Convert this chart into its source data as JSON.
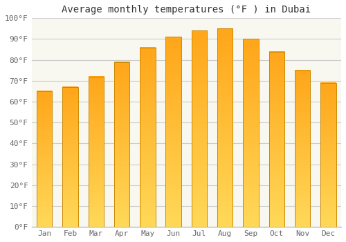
{
  "title": "Average monthly temperatures (°F ) in Dubai",
  "months": [
    "Jan",
    "Feb",
    "Mar",
    "Apr",
    "May",
    "Jun",
    "Jul",
    "Aug",
    "Sep",
    "Oct",
    "Nov",
    "Dec"
  ],
  "values": [
    65,
    67,
    72,
    79,
    86,
    91,
    94,
    95,
    90,
    84,
    75,
    69
  ],
  "bar_color_main": "#FFA820",
  "bar_color_light": "#FFD060",
  "bar_edge_color": "#CC8800",
  "ylim": [
    0,
    100
  ],
  "yticks": [
    0,
    10,
    20,
    30,
    40,
    50,
    60,
    70,
    80,
    90,
    100
  ],
  "ytick_labels": [
    "0°F",
    "10°F",
    "20°F",
    "30°F",
    "40°F",
    "50°F",
    "60°F",
    "70°F",
    "80°F",
    "90°F",
    "100°F"
  ],
  "background_color": "#ffffff",
  "plot_bg_color": "#f8f8f0",
  "grid_color": "#cccccc",
  "title_fontsize": 10,
  "tick_fontsize": 8,
  "bar_width": 0.6
}
